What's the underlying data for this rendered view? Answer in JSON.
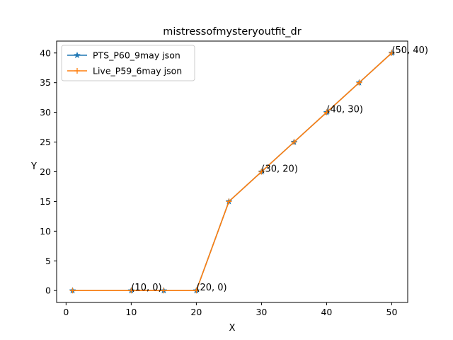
{
  "chart_data": {
    "type": "line",
    "title": "mistressofmysteryoutfit_dr",
    "xlabel": "X",
    "ylabel": "Y",
    "xlim": [
      -1.45,
      52.45
    ],
    "ylim": [
      -2,
      42
    ],
    "xticks": [
      0,
      10,
      20,
      30,
      40,
      50
    ],
    "yticks": [
      0,
      5,
      10,
      15,
      20,
      25,
      30,
      35,
      40
    ],
    "grid": false,
    "legend_position": "top-left",
    "series": [
      {
        "name": "PTS_P60_9may json",
        "color": "#1f77b4",
        "marker": "star",
        "x": [
          1,
          10,
          15,
          20,
          25,
          30,
          35,
          40,
          45,
          50
        ],
        "y": [
          0,
          0,
          0,
          0,
          15,
          20,
          25,
          30,
          35,
          40
        ]
      },
      {
        "name": "Live_P59_6may json",
        "color": "#ff7f0e",
        "marker": "plus",
        "x": [
          1,
          10,
          15,
          20,
          25,
          30,
          35,
          40,
          45,
          50
        ],
        "y": [
          0,
          0,
          0,
          0,
          15,
          20,
          25,
          30,
          35,
          40
        ]
      }
    ],
    "annotations": [
      {
        "text": "(10, 0)",
        "x": 10,
        "y": 0
      },
      {
        "text": "(20, 0)",
        "x": 20,
        "y": 0
      },
      {
        "text": "(30, 20)",
        "x": 30,
        "y": 20
      },
      {
        "text": "(40, 30)",
        "x": 40,
        "y": 30
      },
      {
        "text": "(50, 40)",
        "x": 50,
        "y": 40
      }
    ]
  }
}
